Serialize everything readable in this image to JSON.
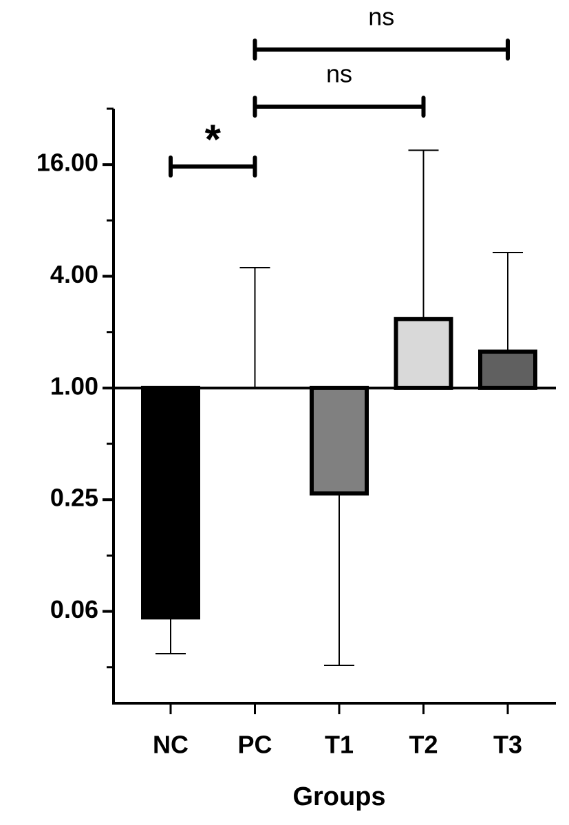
{
  "chart_data": {
    "type": "bar",
    "x_label": "Groups",
    "categories": [
      "NC",
      "PC",
      "T1",
      "T2",
      "T3"
    ],
    "values": [
      0.058,
      1,
      0.27,
      2.35,
      1.57
    ],
    "whisker_ends": [
      0.037,
      4.45,
      0.032,
      19.1,
      5.37
    ],
    "colors": [
      "#000000",
      "none",
      "#808080",
      "#d9d9d9",
      "#606060"
    ],
    "y_scale": "log2",
    "baseline": 1,
    "ylim": [
      0.02,
      32
    ],
    "yticks": [
      {
        "value": 0.0625,
        "label": "0.06"
      },
      {
        "value": 0.25,
        "label": "0.25"
      },
      {
        "value": 1,
        "label": "1.00"
      },
      {
        "value": 4,
        "label": "4.00"
      },
      {
        "value": 16,
        "label": "16.00"
      }
    ],
    "minor_yticks": [
      0.03125,
      0.125,
      0.5,
      2,
      8,
      32
    ],
    "significance": [
      {
        "from": "NC",
        "to": "PC",
        "label": "*"
      },
      {
        "from": "PC",
        "to": "T2",
        "label": "ns"
      },
      {
        "from": "PC",
        "to": "T3",
        "label": "ns"
      }
    ]
  }
}
